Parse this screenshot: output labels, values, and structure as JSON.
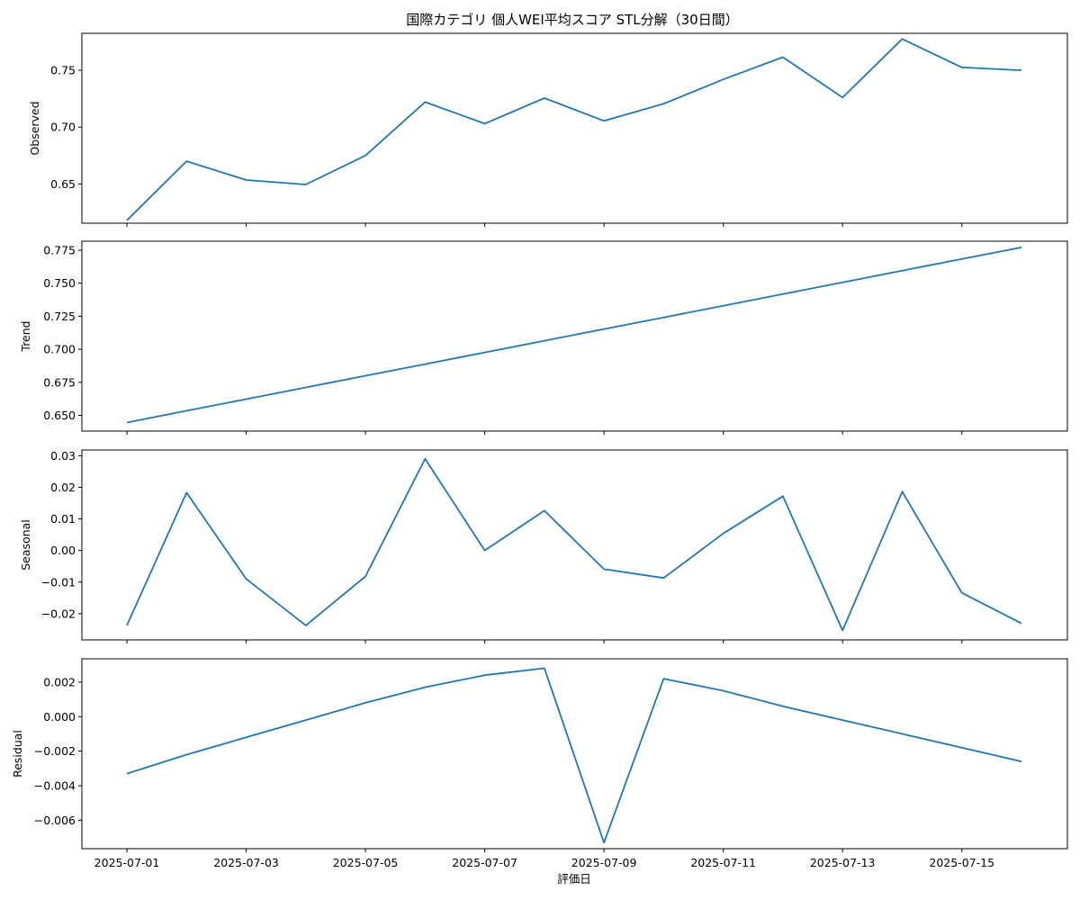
{
  "chart_data": {
    "type": "line",
    "title": "国際カテゴリ 個人WEI平均スコア STL分解（30日間）",
    "xlabel": "評価日",
    "x": [
      "2025-07-01",
      "2025-07-02",
      "2025-07-03",
      "2025-07-04",
      "2025-07-05",
      "2025-07-06",
      "2025-07-07",
      "2025-07-08",
      "2025-07-09",
      "2025-07-10",
      "2025-07-11",
      "2025-07-12",
      "2025-07-13",
      "2025-07-14",
      "2025-07-15",
      "2025-07-16"
    ],
    "xtick_labels": [
      "2025-07-01",
      "2025-07-03",
      "2025-07-05",
      "2025-07-07",
      "2025-07-09",
      "2025-07-11",
      "2025-07-13",
      "2025-07-15"
    ],
    "line_color": "#1f77b4",
    "panels": [
      {
        "ylabel": "Observed",
        "ylim": [
          0.6155,
          0.7825
        ],
        "yticks": [
          0.65,
          0.7,
          0.75
        ],
        "ytick_labels": [
          "0.65",
          "0.70",
          "0.75"
        ],
        "values": [
          0.618,
          0.67,
          0.6535,
          0.6495,
          0.675,
          0.722,
          0.703,
          0.7255,
          0.7055,
          0.7205,
          0.742,
          0.7615,
          0.726,
          0.7775,
          0.7525,
          0.75
        ]
      },
      {
        "ylabel": "Trend",
        "ylim": [
          0.6381,
          0.7818
        ],
        "yticks": [
          0.65,
          0.675,
          0.7,
          0.725,
          0.75,
          0.775
        ],
        "ytick_labels": [
          "0.650",
          "0.675",
          "0.700",
          "0.725",
          "0.750",
          "0.775"
        ],
        "values": [
          0.6446,
          0.6535,
          0.6623,
          0.6711,
          0.68,
          0.6888,
          0.6976,
          0.7065,
          0.7153,
          0.7241,
          0.733,
          0.7418,
          0.7506,
          0.7595,
          0.7683,
          0.7771
        ]
      },
      {
        "ylabel": "Seasonal",
        "ylim": [
          -0.0283,
          0.0318
        ],
        "yticks": [
          -0.02,
          -0.01,
          0.0,
          0.01,
          0.02,
          0.03
        ],
        "ytick_labels": [
          "−0.02",
          "−0.01",
          "0.00",
          "0.01",
          "0.02",
          "0.03"
        ],
        "values": [
          -0.0237,
          0.0183,
          -0.009,
          -0.0237,
          -0.0082,
          0.029,
          0.0,
          0.0126,
          -0.0059,
          -0.0087,
          0.0054,
          0.0172,
          -0.0253,
          0.0186,
          -0.0134,
          -0.0231
        ]
      },
      {
        "ylabel": "Residual",
        "ylim": [
          -0.00765,
          0.00335
        ],
        "yticks": [
          -0.006,
          -0.004,
          -0.002,
          0.0,
          0.002
        ],
        "ytick_labels": [
          "−0.006",
          "−0.004",
          "−0.002",
          "0.000",
          "0.002"
        ],
        "values": [
          -0.0033,
          -0.0022,
          -0.0012,
          -0.0002,
          0.0008,
          0.0017,
          0.0024,
          0.0028,
          -0.0073,
          0.0022,
          0.0015,
          0.0006,
          -0.0002,
          -0.001,
          -0.0018,
          -0.0026
        ]
      }
    ]
  }
}
